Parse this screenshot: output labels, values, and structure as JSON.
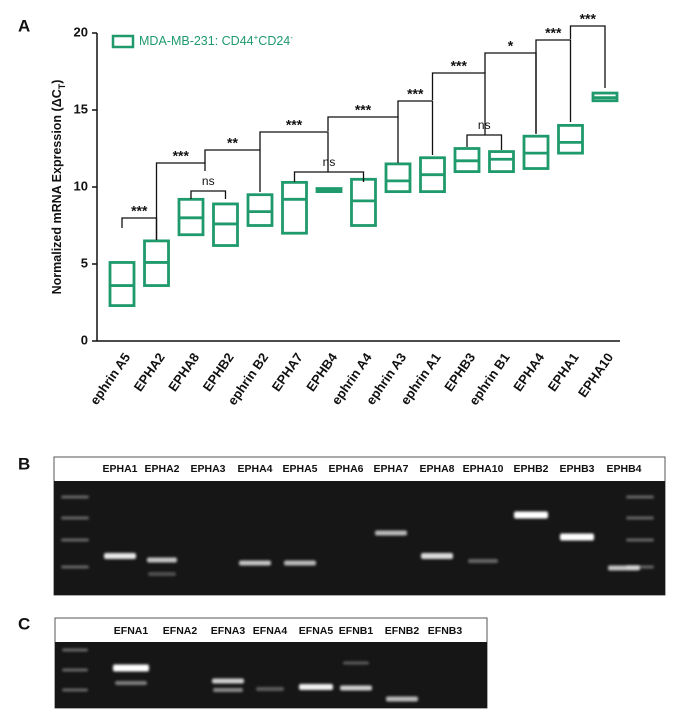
{
  "panel_labels": [
    "A",
    "B",
    "C"
  ],
  "chart_data": {
    "type": "box",
    "y_label_parts": [
      "Normalized mRNA Expression (ΔC",
      "T",
      ")"
    ],
    "legend_parts": [
      "MDA-MB-231: CD44",
      "+",
      "CD24",
      "-"
    ],
    "color": "#1f9a6c",
    "categories": [
      "ephrin A5",
      "EPHA2",
      "EPHA8",
      "EPHB2",
      "ephrin B2",
      "EPHA7",
      "EPHB4",
      "ephrin A4",
      "ephrin A3",
      "ephrin A1",
      "EPHB3",
      "ephrin B1",
      "EPHA4",
      "EPHA1",
      "EPHA10"
    ],
    "low": [
      2.3,
      3.6,
      6.9,
      6.2,
      7.5,
      7.0,
      9.7,
      7.5,
      9.7,
      9.7,
      11.0,
      11.0,
      11.2,
      12.2,
      15.6
    ],
    "median": [
      3.6,
      5.1,
      8.0,
      7.6,
      8.4,
      9.2,
      9.8,
      9.1,
      10.4,
      10.8,
      11.7,
      11.8,
      12.2,
      12.9,
      15.8
    ],
    "high": [
      5.1,
      6.5,
      9.2,
      8.9,
      9.5,
      10.3,
      9.9,
      10.5,
      11.5,
      11.9,
      12.5,
      12.3,
      13.3,
      14.0,
      16.1
    ],
    "ylim": [
      0,
      20
    ],
    "yticks": [
      0,
      5,
      10,
      15,
      20
    ],
    "annotations": [
      "***",
      "***",
      "ns",
      "**",
      "***",
      "ns",
      "***",
      "***",
      "***",
      "ns",
      "*",
      "***",
      "***"
    ]
  },
  "gel_b": {
    "lanes": [
      "EPHA1",
      "EPHA2",
      "EPHA3",
      "EPHA4",
      "EPHA5",
      "EPHA6",
      "EPHA7",
      "EPHA8",
      "EPHA10",
      "EPHB2",
      "EPHB3",
      "EPHB4"
    ]
  },
  "gel_c": {
    "lanes": [
      "EFNA1",
      "EFNA2",
      "EFNA3",
      "EFNA4",
      "EFNA5",
      "EFNB1",
      "EFNB2",
      "EFNB3"
    ]
  }
}
